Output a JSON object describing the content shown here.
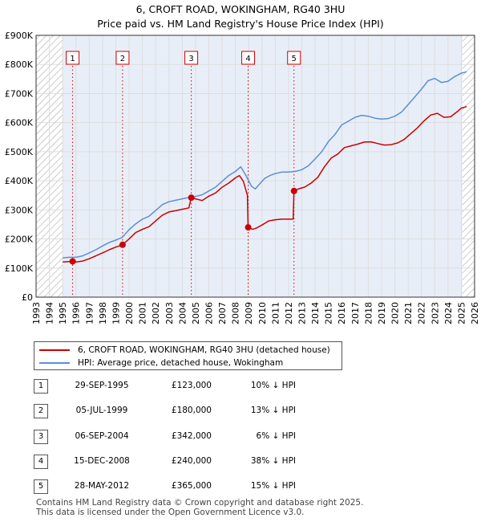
{
  "chart_data": {
    "type": "line",
    "title": "6, CROFT ROAD, WOKINGHAM, RG40 3HU",
    "subtitle": "Price paid vs. HM Land Registry's House Price Index (HPI)",
    "xlim": [
      1993,
      2026
    ],
    "ylim": [
      0,
      900000
    ],
    "y_ticks": [
      {
        "value": 0,
        "label": "£0"
      },
      {
        "value": 100000,
        "label": "£100K"
      },
      {
        "value": 200000,
        "label": "£200K"
      },
      {
        "value": 300000,
        "label": "£300K"
      },
      {
        "value": 400000,
        "label": "£400K"
      },
      {
        "value": 500000,
        "label": "£500K"
      },
      {
        "value": 600000,
        "label": "£600K"
      },
      {
        "value": 700000,
        "label": "£700K"
      },
      {
        "value": 800000,
        "label": "£800K"
      },
      {
        "value": 900000,
        "label": "£900K"
      }
    ],
    "x_ticks": [
      "1993",
      "1994",
      "1995",
      "1996",
      "1997",
      "1998",
      "1999",
      "2000",
      "2001",
      "2002",
      "2003",
      "2004",
      "2005",
      "2006",
      "2007",
      "2008",
      "2009",
      "2010",
      "2011",
      "2012",
      "2013",
      "2014",
      "2015",
      "2016",
      "2017",
      "2018",
      "2019",
      "2020",
      "2021",
      "2022",
      "2023",
      "2024",
      "2025",
      "2026"
    ],
    "hatched_ranges": [
      [
        1993,
        1995.0
      ],
      [
        2025.08,
        2026
      ]
    ],
    "series": [
      {
        "name": "6, CROFT ROAD, WOKINGHAM, RG40 3HU (detached house)",
        "color": "#cc0000",
        "points": [
          [
            1995.0,
            121000
          ],
          [
            1995.75,
            123000
          ],
          [
            1996.0,
            121000
          ],
          [
            1996.5,
            124000
          ],
          [
            1997.0,
            132000
          ],
          [
            1997.5,
            142000
          ],
          [
            1998.0,
            152000
          ],
          [
            1998.5,
            163000
          ],
          [
            1999.0,
            172000
          ],
          [
            1999.5,
            180000
          ],
          [
            2000.0,
            200000
          ],
          [
            2000.5,
            222000
          ],
          [
            2001.0,
            233000
          ],
          [
            2001.5,
            242000
          ],
          [
            2002.0,
            262000
          ],
          [
            2002.5,
            282000
          ],
          [
            2003.0,
            293000
          ],
          [
            2003.5,
            297000
          ],
          [
            2004.0,
            302000
          ],
          [
            2004.5,
            307000
          ],
          [
            2004.68,
            342000
          ],
          [
            2005.0,
            338000
          ],
          [
            2005.5,
            332000
          ],
          [
            2006.0,
            347000
          ],
          [
            2006.5,
            358000
          ],
          [
            2007.0,
            378000
          ],
          [
            2007.5,
            392000
          ],
          [
            2008.0,
            410000
          ],
          [
            2008.3,
            418000
          ],
          [
            2008.6,
            398000
          ],
          [
            2008.9,
            350000
          ],
          [
            2008.96,
            240000
          ],
          [
            2009.3,
            233000
          ],
          [
            2009.6,
            238000
          ],
          [
            2010.0,
            248000
          ],
          [
            2010.5,
            262000
          ],
          [
            2011.0,
            266000
          ],
          [
            2011.5,
            268000
          ],
          [
            2012.0,
            268000
          ],
          [
            2012.35,
            268000
          ],
          [
            2012.41,
            365000
          ],
          [
            2012.8,
            373000
          ],
          [
            2013.2,
            378000
          ],
          [
            2013.7,
            392000
          ],
          [
            2014.2,
            412000
          ],
          [
            2014.7,
            448000
          ],
          [
            2015.2,
            478000
          ],
          [
            2015.7,
            492000
          ],
          [
            2016.2,
            514000
          ],
          [
            2016.7,
            520000
          ],
          [
            2017.2,
            526000
          ],
          [
            2017.7,
            533000
          ],
          [
            2018.2,
            534000
          ],
          [
            2018.7,
            528000
          ],
          [
            2019.2,
            523000
          ],
          [
            2019.7,
            524000
          ],
          [
            2020.2,
            530000
          ],
          [
            2020.7,
            542000
          ],
          [
            2021.2,
            562000
          ],
          [
            2021.7,
            582000
          ],
          [
            2022.2,
            606000
          ],
          [
            2022.7,
            626000
          ],
          [
            2023.2,
            632000
          ],
          [
            2023.7,
            618000
          ],
          [
            2024.2,
            620000
          ],
          [
            2024.7,
            638000
          ],
          [
            2025.0,
            650000
          ],
          [
            2025.4,
            655000
          ]
        ]
      },
      {
        "name": "HPI: Average price, detached house, Wokingham",
        "color": "#5b8fd6",
        "points": [
          [
            1995.0,
            135000
          ],
          [
            1995.5,
            137000
          ],
          [
            1996.0,
            137000
          ],
          [
            1996.5,
            142000
          ],
          [
            1997.0,
            152000
          ],
          [
            1997.5,
            163000
          ],
          [
            1998.0,
            176000
          ],
          [
            1998.5,
            188000
          ],
          [
            1999.0,
            196000
          ],
          [
            1999.5,
            206000
          ],
          [
            2000.0,
            232000
          ],
          [
            2000.5,
            252000
          ],
          [
            2001.0,
            268000
          ],
          [
            2001.5,
            278000
          ],
          [
            2002.0,
            298000
          ],
          [
            2002.5,
            318000
          ],
          [
            2003.0,
            328000
          ],
          [
            2003.5,
            333000
          ],
          [
            2004.0,
            338000
          ],
          [
            2004.5,
            343000
          ],
          [
            2005.0,
            346000
          ],
          [
            2005.5,
            352000
          ],
          [
            2006.0,
            365000
          ],
          [
            2006.5,
            378000
          ],
          [
            2007.0,
            398000
          ],
          [
            2007.5,
            418000
          ],
          [
            2008.0,
            432000
          ],
          [
            2008.4,
            448000
          ],
          [
            2008.8,
            418000
          ],
          [
            2009.2,
            382000
          ],
          [
            2009.5,
            372000
          ],
          [
            2009.8,
            388000
          ],
          [
            2010.2,
            408000
          ],
          [
            2010.6,
            418000
          ],
          [
            2011.0,
            425000
          ],
          [
            2011.5,
            430000
          ],
          [
            2012.0,
            430000
          ],
          [
            2012.5,
            432000
          ],
          [
            2013.0,
            438000
          ],
          [
            2013.5,
            452000
          ],
          [
            2014.0,
            475000
          ],
          [
            2014.5,
            500000
          ],
          [
            2015.0,
            535000
          ],
          [
            2015.5,
            560000
          ],
          [
            2016.0,
            592000
          ],
          [
            2016.5,
            605000
          ],
          [
            2017.0,
            618000
          ],
          [
            2017.5,
            625000
          ],
          [
            2018.0,
            622000
          ],
          [
            2018.5,
            615000
          ],
          [
            2019.0,
            612000
          ],
          [
            2019.5,
            614000
          ],
          [
            2020.0,
            622000
          ],
          [
            2020.5,
            636000
          ],
          [
            2021.0,
            662000
          ],
          [
            2021.5,
            688000
          ],
          [
            2022.0,
            715000
          ],
          [
            2022.5,
            744000
          ],
          [
            2023.0,
            752000
          ],
          [
            2023.5,
            738000
          ],
          [
            2024.0,
            742000
          ],
          [
            2024.5,
            758000
          ],
          [
            2025.0,
            770000
          ],
          [
            2025.4,
            775000
          ]
        ]
      }
    ],
    "sales": [
      {
        "num": "1",
        "x": 1995.75,
        "price": 123000
      },
      {
        "num": "2",
        "x": 1999.51,
        "price": 180000
      },
      {
        "num": "3",
        "x": 2004.68,
        "price": 342000
      },
      {
        "num": "4",
        "x": 2008.96,
        "price": 240000
      },
      {
        "num": "5",
        "x": 2012.41,
        "price": 365000
      }
    ]
  },
  "legend": {
    "property_label": "6, CROFT ROAD, WOKINGHAM, RG40 3HU (detached house)",
    "hpi_label": "HPI: Average price, detached house, Wokingham"
  },
  "sales_table": [
    {
      "num": "1",
      "date": "29-SEP-1995",
      "price": "£123,000",
      "hpi": "10% ↓ HPI"
    },
    {
      "num": "2",
      "date": "05-JUL-1999",
      "price": "£180,000",
      "hpi": "13% ↓ HPI"
    },
    {
      "num": "3",
      "date": "06-SEP-2004",
      "price": "£342,000",
      "hpi": "6% ↓ HPI"
    },
    {
      "num": "4",
      "date": "15-DEC-2008",
      "price": "£240,000",
      "hpi": "38% ↓ HPI"
    },
    {
      "num": "5",
      "date": "28-MAY-2012",
      "price": "£365,000",
      "hpi": "15% ↓ HPI"
    }
  ],
  "footer": {
    "line1": "Contains HM Land Registry data © Crown copyright and database right 2025.",
    "line2": "This data is licensed under the Open Government Licence v3.0."
  },
  "colors": {
    "property": "#cc0000",
    "hpi": "#5b8fd6",
    "grid": "#dddddd",
    "plot_bg": "#e8eef8"
  }
}
